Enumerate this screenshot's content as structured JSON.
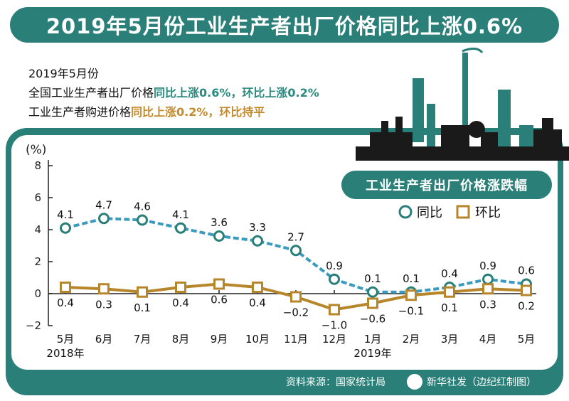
{
  "title": "2019年5月份工业生产者出厂价格同比上涨0.6%",
  "summary": {
    "line1": "2019年5月份",
    "line2_prefix": "全国工业生产者出厂价格",
    "line2_highlight": "同比上涨0.6%，环比上涨0.2%",
    "line3_prefix": "工业生产者购进价格",
    "line3_highlight": "同比上涨0.2%，环比持平"
  },
  "subtitle": "工业生产者出厂价格涨跌幅",
  "source": "资料来源：国家统计局",
  "credit": "新华社发（边纪红制图）",
  "colors": {
    "teal": "#2a7f78",
    "yoy": "#3a9bbf",
    "mom": "#b8862a"
  },
  "chart_data": {
    "type": "line",
    "title": "工业生产者出厂价格涨跌幅",
    "ylabel": "(%)",
    "ylim": [
      -2,
      8
    ],
    "yticks": [
      "8",
      "6",
      "4",
      "2",
      "0",
      "−2"
    ],
    "ytick_values": [
      8,
      6,
      4,
      2,
      0,
      -2
    ],
    "categories": [
      "5月",
      "6月",
      "7月",
      "8月",
      "9月",
      "10月",
      "11月",
      "12月",
      "1月",
      "2月",
      "3月",
      "4月",
      "5月"
    ],
    "year_labels": [
      "2018年",
      "2019年"
    ],
    "legend": "top-right",
    "series": [
      {
        "name": "同比",
        "values": [
          4.1,
          4.7,
          4.6,
          4.1,
          3.6,
          3.3,
          2.7,
          0.9,
          0.1,
          0.1,
          0.4,
          0.9,
          0.6
        ],
        "labels": [
          "4.1",
          "4.7",
          "4.6",
          "4.1",
          "3.6",
          "3.3",
          "2.7",
          "0.9",
          "0.1",
          "0.1",
          "0.4",
          "0.9",
          "0.6"
        ]
      },
      {
        "name": "环比",
        "values": [
          0.4,
          0.3,
          0.1,
          0.4,
          0.6,
          0.4,
          -0.2,
          -1.0,
          -0.6,
          -0.1,
          0.1,
          0.3,
          0.2
        ],
        "labels": [
          "0.4",
          "0.3",
          "0.1",
          "0.4",
          "0.6",
          "0.4",
          "−0.2",
          "−1.0",
          "−0.6",
          "−0.1",
          "0.1",
          "0.3",
          "0.2"
        ]
      }
    ]
  }
}
